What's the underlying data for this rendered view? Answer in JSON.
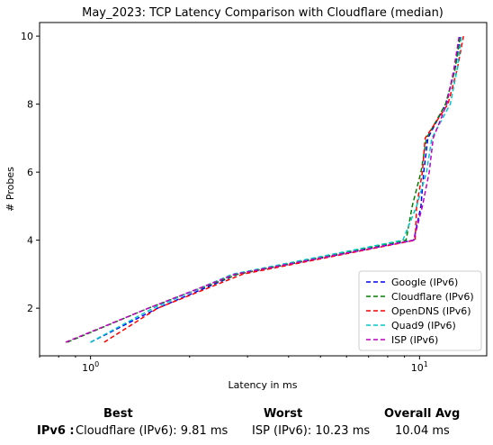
{
  "chart_data": {
    "type": "line",
    "title": "May_2023: TCP Latency Comparison with Cloudflare (median)",
    "xlabel": "Latency in ms",
    "ylabel": "# Probes",
    "xscale": "log",
    "xlim": [
      0.7,
      16
    ],
    "ylim": [
      0.6,
      10.4
    ],
    "x_ticks": [
      {
        "value": 1,
        "base": "10",
        "exp": "0"
      },
      {
        "value": 10,
        "base": "10",
        "exp": "1"
      }
    ],
    "y_ticks": [
      2,
      4,
      6,
      8,
      10
    ],
    "legend_position": "lower-right",
    "series": [
      {
        "name": "Google (IPv6)",
        "color": "#0000ff",
        "dash": "dashed",
        "points": [
          [
            1.0,
            1
          ],
          [
            1.6,
            2
          ],
          [
            2.8,
            3
          ],
          [
            9.6,
            4
          ],
          [
            10.1,
            5
          ],
          [
            10.3,
            6
          ],
          [
            10.6,
            7
          ],
          [
            12.0,
            8
          ],
          [
            12.8,
            9
          ],
          [
            13.3,
            10
          ]
        ]
      },
      {
        "name": "Cloudflare (IPv6)",
        "color": "#008000",
        "dash": "dashed",
        "points": [
          [
            0.85,
            1
          ],
          [
            1.5,
            2
          ],
          [
            2.8,
            3
          ],
          [
            9.1,
            4
          ],
          [
            9.5,
            5
          ],
          [
            10.1,
            6
          ],
          [
            10.5,
            7
          ],
          [
            12.0,
            8
          ],
          [
            12.8,
            9
          ],
          [
            13.3,
            10
          ]
        ]
      },
      {
        "name": "OpenDNS (IPv6)",
        "color": "#ff0000",
        "dash": "dashed",
        "points": [
          [
            1.1,
            1
          ],
          [
            1.6,
            2
          ],
          [
            2.9,
            3
          ],
          [
            9.7,
            4
          ],
          [
            9.8,
            5
          ],
          [
            10.2,
            6
          ],
          [
            10.4,
            7
          ],
          [
            12.2,
            8
          ],
          [
            13.0,
            9
          ],
          [
            13.6,
            10
          ]
        ]
      },
      {
        "name": "Quad9 (IPv6)",
        "color": "#00c8c8",
        "dash": "dashed",
        "points": [
          [
            1.0,
            1
          ],
          [
            1.55,
            2
          ],
          [
            2.7,
            3
          ],
          [
            8.9,
            4
          ],
          [
            9.8,
            5
          ],
          [
            10.5,
            6
          ],
          [
            10.9,
            7
          ],
          [
            12.4,
            8
          ],
          [
            13.0,
            9
          ],
          [
            13.4,
            10
          ]
        ]
      },
      {
        "name": "ISP (IPv6)",
        "color": "#c000c0",
        "dash": "dashed",
        "points": [
          [
            0.84,
            1
          ],
          [
            1.5,
            2
          ],
          [
            2.75,
            3
          ],
          [
            9.6,
            4
          ],
          [
            10.2,
            5
          ],
          [
            10.7,
            6
          ],
          [
            11.0,
            7
          ],
          [
            12.1,
            8
          ],
          [
            12.7,
            9
          ],
          [
            13.2,
            10
          ]
        ]
      }
    ]
  },
  "summary": {
    "best_header": "Best",
    "worst_header": "Worst",
    "avg_header": "Overall Avg",
    "row_label": "IPv6 :",
    "best_value": "Cloudflare (IPv6): 9.81 ms",
    "worst_value": "ISP (IPv6): 10.23 ms",
    "avg_value": "10.04 ms"
  }
}
